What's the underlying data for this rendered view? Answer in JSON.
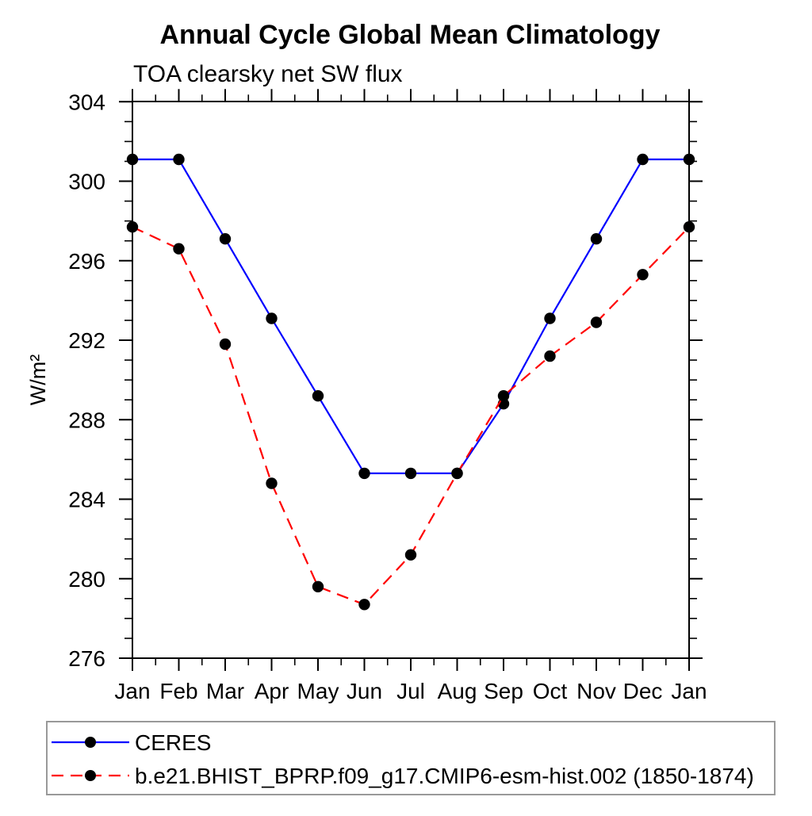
{
  "chart_data": {
    "type": "line",
    "title": "Annual Cycle Global Mean Climatology",
    "subtitle": "TOA clearsky net SW flux",
    "ylabel": "W/m²",
    "xlabel": "",
    "categories": [
      "Jan",
      "Feb",
      "Mar",
      "Apr",
      "May",
      "Jun",
      "Jul",
      "Aug",
      "Sep",
      "Oct",
      "Nov",
      "Dec",
      "Jan"
    ],
    "ylim": [
      276,
      304
    ],
    "yticks": [
      276,
      280,
      284,
      288,
      292,
      296,
      300,
      304
    ],
    "y_minor_step": 1,
    "grid": false,
    "legend_position": "bottom",
    "axis_color": "#000000",
    "marker_color": "#000000",
    "legend_border_color": "#999999",
    "series": [
      {
        "name": "CERES",
        "color": "#0000ff",
        "style": "solid",
        "marker": "filled-circle",
        "values": [
          301.1,
          301.1,
          297.1,
          293.1,
          289.2,
          285.3,
          285.3,
          285.3,
          288.8,
          293.1,
          297.1,
          301.1,
          301.1
        ]
      },
      {
        "name": "b.e21.BHIST_BPRP.f09_g17.CMIP6-esm-hist.002 (1850-1874)",
        "color": "#ff0000",
        "style": "dashed",
        "marker": "filled-circle",
        "values": [
          297.7,
          296.6,
          291.8,
          284.8,
          279.6,
          278.7,
          281.2,
          285.3,
          289.2,
          291.2,
          292.9,
          295.3,
          297.7
        ]
      }
    ]
  }
}
